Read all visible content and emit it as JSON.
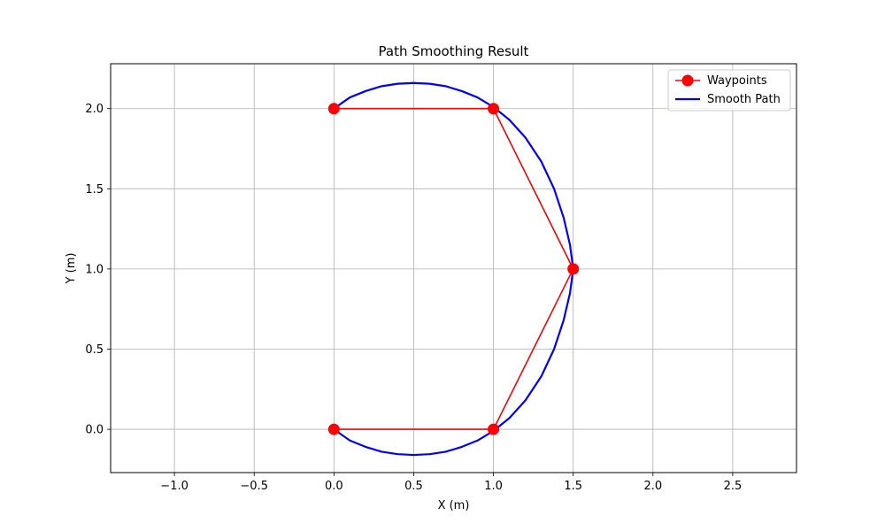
{
  "chart_data": {
    "type": "line",
    "title": "Path Smoothing Result",
    "xlabel": "X (m)",
    "ylabel": "Y (m)",
    "xlim": [
      -1.4,
      2.9
    ],
    "ylim": [
      -0.27,
      2.28
    ],
    "xticks": [
      -1.0,
      -0.5,
      0.0,
      0.5,
      1.0,
      1.5,
      2.0,
      2.5
    ],
    "xtick_labels": [
      "−1.0",
      "−0.5",
      "0.0",
      "0.5",
      "1.0",
      "1.5",
      "2.0",
      "2.5"
    ],
    "yticks": [
      0.0,
      0.5,
      1.0,
      1.5,
      2.0
    ],
    "ytick_labels": [
      "0.0",
      "0.5",
      "1.0",
      "1.5",
      "2.0"
    ],
    "grid": true,
    "legend_position": "top-right",
    "series": [
      {
        "name": "Waypoints",
        "color": "#ff0000",
        "marker": "circle",
        "x": [
          0.0,
          1.0,
          1.5,
          1.0,
          0.0
        ],
        "y": [
          0.0,
          0.0,
          1.0,
          2.0,
          2.0
        ]
      },
      {
        "name": "Smooth Path",
        "color": "#0000ff",
        "x": [
          0.0,
          0.1,
          0.2,
          0.3,
          0.4,
          0.5,
          0.6,
          0.7,
          0.8,
          0.9,
          1.0,
          1.1,
          1.2,
          1.3,
          1.38,
          1.44,
          1.48,
          1.5,
          1.48,
          1.44,
          1.38,
          1.3,
          1.2,
          1.1,
          1.0,
          0.9,
          0.8,
          0.7,
          0.6,
          0.5,
          0.4,
          0.3,
          0.2,
          0.1,
          0.0
        ],
        "y": [
          0.0,
          -0.07,
          -0.11,
          -0.14,
          -0.155,
          -0.16,
          -0.155,
          -0.14,
          -0.11,
          -0.07,
          -0.01,
          0.07,
          0.18,
          0.33,
          0.5,
          0.68,
          0.85,
          1.0,
          1.15,
          1.32,
          1.5,
          1.67,
          1.82,
          1.93,
          2.01,
          2.07,
          2.11,
          2.14,
          2.155,
          2.16,
          2.155,
          2.14,
          2.11,
          2.07,
          2.0
        ]
      }
    ]
  }
}
